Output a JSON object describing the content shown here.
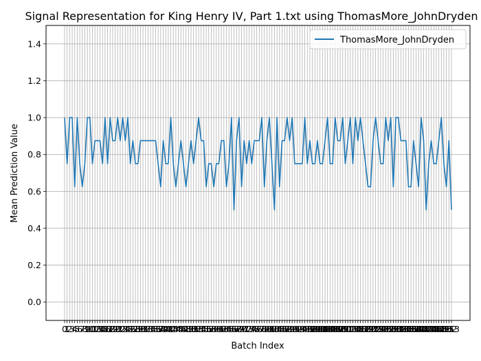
{
  "chart_data": {
    "type": "line",
    "title": "Signal Representation for King Henry IV, Part 1.txt using ThomasMore_JohnDryden",
    "xlabel": "Batch Index",
    "ylabel": "Mean Prediction Value",
    "ylim": [
      -0.1,
      1.5
    ],
    "y_ticks": [
      "0.0",
      "0.2",
      "0.4",
      "0.6",
      "0.8",
      "1.0",
      "1.2",
      "1.4"
    ],
    "grid": true,
    "legend_position": "top-right",
    "series": [
      {
        "name": "ThomasMore_JohnDryden",
        "color": "#1f77b4",
        "values": [
          1.0,
          0.75,
          1.0,
          1.0,
          0.625,
          1.0,
          0.75,
          0.625,
          0.75,
          1.0,
          1.0,
          0.75,
          0.875,
          0.875,
          0.875,
          0.75,
          1.0,
          0.75,
          1.0,
          0.875,
          0.875,
          1.0,
          0.875,
          1.0,
          0.875,
          1.0,
          0.75,
          0.875,
          0.75,
          0.75,
          0.875,
          0.875,
          0.875,
          0.875,
          0.875,
          0.875,
          0.875,
          0.75,
          0.625,
          0.875,
          0.75,
          0.75,
          1.0,
          0.75,
          0.625,
          0.75,
          0.875,
          0.75,
          0.625,
          0.75,
          0.875,
          0.75,
          0.875,
          1.0,
          0.875,
          0.875,
          0.625,
          0.75,
          0.75,
          0.625,
          0.75,
          0.75,
          0.875,
          0.875,
          0.625,
          0.75,
          1.0,
          0.5,
          0.875,
          1.0,
          0.625,
          0.875,
          0.75,
          0.875,
          0.75,
          0.875,
          0.875,
          0.875,
          1.0,
          0.625,
          0.875,
          1.0,
          0.75,
          0.5,
          1.0,
          0.625,
          0.875,
          0.875,
          1.0,
          0.875,
          1.0,
          0.75,
          0.75,
          0.75,
          0.75,
          1.0,
          0.75,
          0.875,
          0.75,
          0.75,
          0.875,
          0.75,
          0.75,
          0.875,
          1.0,
          0.75,
          0.75,
          1.0,
          0.875,
          0.875,
          1.0,
          0.75,
          0.875,
          1.0,
          0.75,
          1.0,
          0.875,
          1.0,
          0.875,
          0.75,
          0.625,
          0.625,
          0.875,
          1.0,
          0.875,
          0.75,
          0.75,
          1.0,
          0.875,
          1.0,
          0.625,
          1.0,
          1.0,
          0.875,
          0.875,
          0.875,
          0.625,
          0.625,
          0.875,
          0.75,
          0.625,
          1.0,
          0.875,
          0.5,
          0.75,
          0.875,
          0.75,
          0.75,
          0.875,
          1.0,
          0.75,
          0.625,
          0.875,
          0.5
        ]
      }
    ]
  }
}
